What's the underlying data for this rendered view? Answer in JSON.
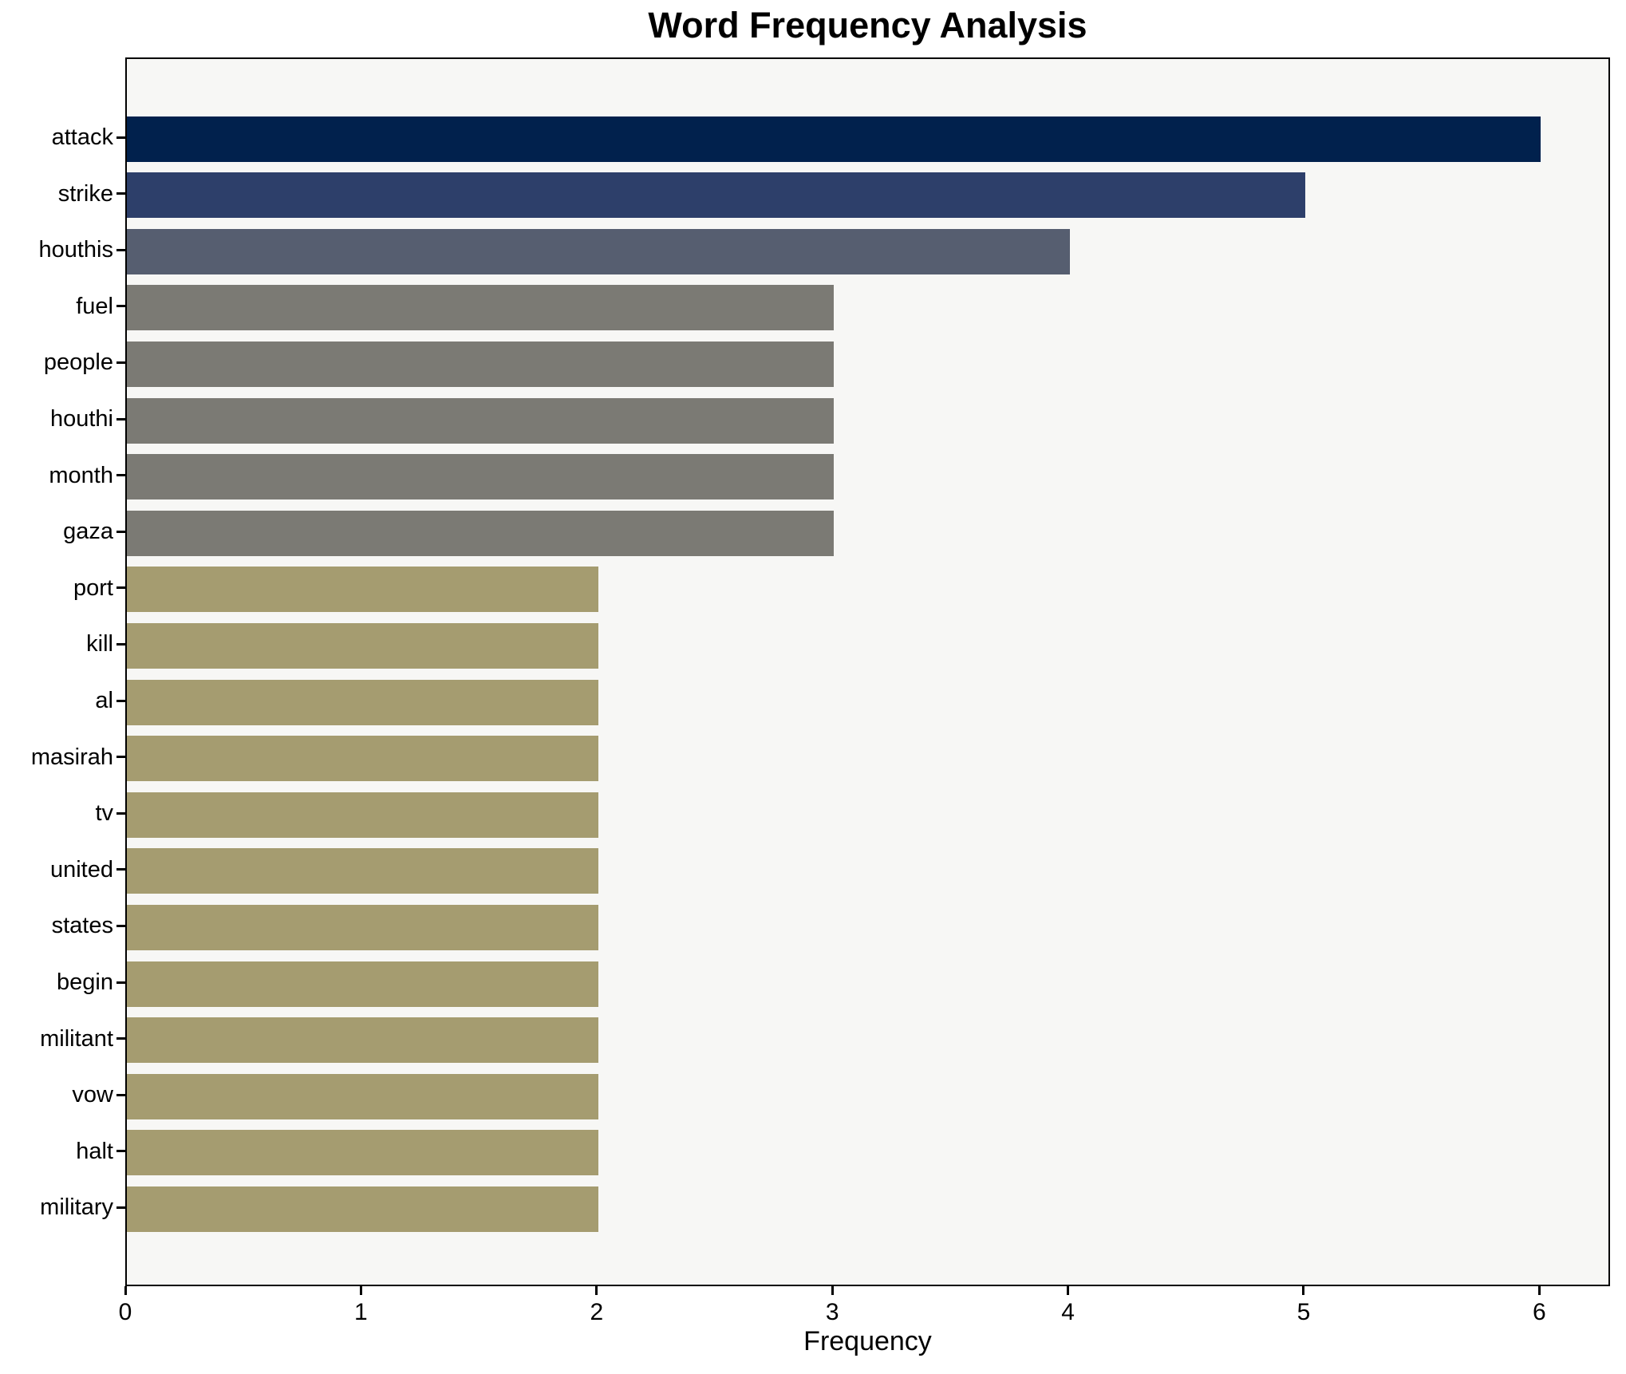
{
  "chart_data": {
    "type": "bar",
    "orientation": "horizontal",
    "title": "Word Frequency Analysis",
    "xlabel": "Frequency",
    "ylabel": "",
    "categories": [
      "attack",
      "strike",
      "houthis",
      "fuel",
      "people",
      "houthi",
      "month",
      "gaza",
      "port",
      "kill",
      "al",
      "masirah",
      "tv",
      "united",
      "states",
      "begin",
      "militant",
      "vow",
      "halt",
      "military"
    ],
    "values": [
      6,
      5,
      4,
      3,
      3,
      3,
      3,
      3,
      2,
      2,
      2,
      2,
      2,
      2,
      2,
      2,
      2,
      2,
      2,
      2
    ],
    "bar_colors": [
      "#01214d",
      "#2d3f6a",
      "#565e70",
      "#7b7a74",
      "#7b7a74",
      "#7b7a74",
      "#7b7a74",
      "#7b7a74",
      "#a59c70",
      "#a59c70",
      "#a59c70",
      "#a59c70",
      "#a59c70",
      "#a59c70",
      "#a59c70",
      "#a59c70",
      "#a59c70",
      "#a59c70",
      "#a59c70",
      "#a59c70"
    ],
    "xticks": [
      0,
      1,
      2,
      3,
      4,
      5,
      6
    ],
    "xlim": [
      0,
      6.3
    ],
    "grid": false,
    "legend": null,
    "plot_background": "#f7f7f5",
    "figure_background": "#ffffff",
    "spine_color": "#000000",
    "text_color": "#000000"
  }
}
